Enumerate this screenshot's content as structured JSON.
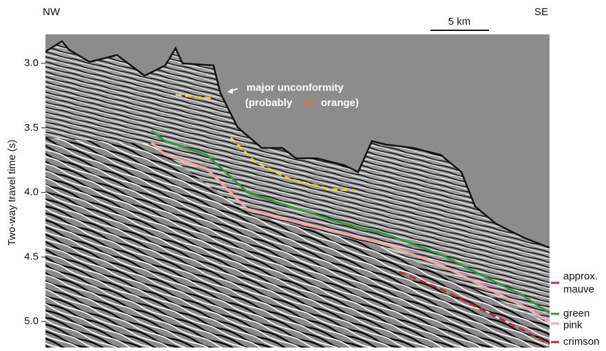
{
  "compass": {
    "left": "NW",
    "right": "SE"
  },
  "scale_bar": "5 km",
  "axis": {
    "label": "Two-way travel time (s)",
    "ticks": [
      "3.0",
      "3.5",
      "4.0",
      "4.5",
      "5.0"
    ]
  },
  "annotation": {
    "line1": "major unconformity",
    "line2_start": "(probably",
    "line2_end": "orange)"
  },
  "horizon_labels": {
    "mauve_1": "approx.",
    "mauve_2": "mauve",
    "green": "green",
    "pink": "pink",
    "crimson": "crimson"
  }
}
